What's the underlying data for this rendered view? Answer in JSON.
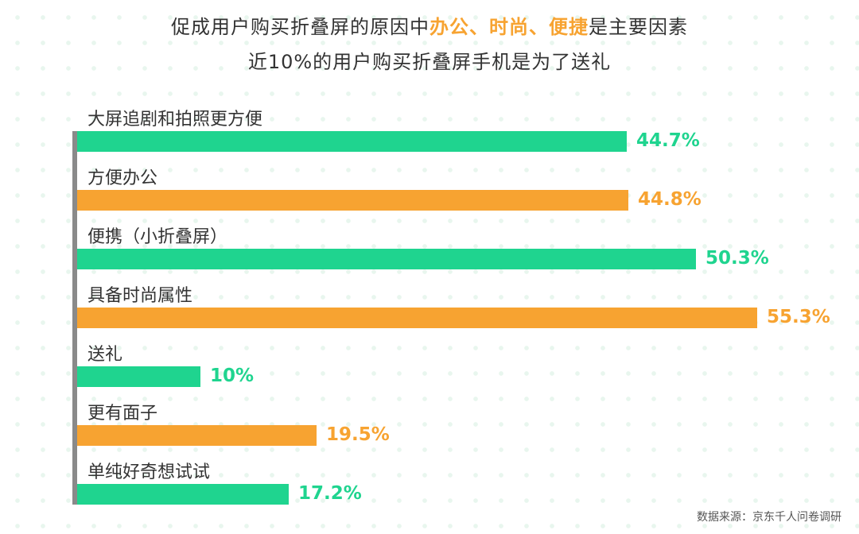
{
  "title": {
    "line1_prefix": "促成用户购买折叠屏的原因中",
    "line1_highlight": "办公、时尚、便捷",
    "line1_suffix": "是主要因素",
    "line2": "近10%的用户购买折叠屏手机是为了送礼"
  },
  "colors": {
    "green": "#1fd48f",
    "orange": "#f7a331",
    "axis": "#8a8a8a"
  },
  "chart_data": {
    "type": "bar",
    "orientation": "horizontal",
    "categories": [
      "大屏追剧和拍照更方便",
      "方便办公",
      "便携（小折叠屏）",
      "具备时尚属性",
      "送礼",
      "更有面子",
      "单纯好奇想试试"
    ],
    "values": [
      44.7,
      44.8,
      50.3,
      55.3,
      10,
      19.5,
      17.2
    ],
    "value_labels": [
      "44.7%",
      "44.8%",
      "50.3%",
      "55.3%",
      "10%",
      "19.5%",
      "17.2%"
    ],
    "bar_colors": [
      "green",
      "orange",
      "green",
      "orange",
      "green",
      "orange",
      "green"
    ],
    "title": "",
    "xlabel": "",
    "ylabel": "",
    "xlim": [
      0,
      55.3
    ],
    "grid": false,
    "legend": "none"
  },
  "source": "数据来源：京东千人问卷调研"
}
